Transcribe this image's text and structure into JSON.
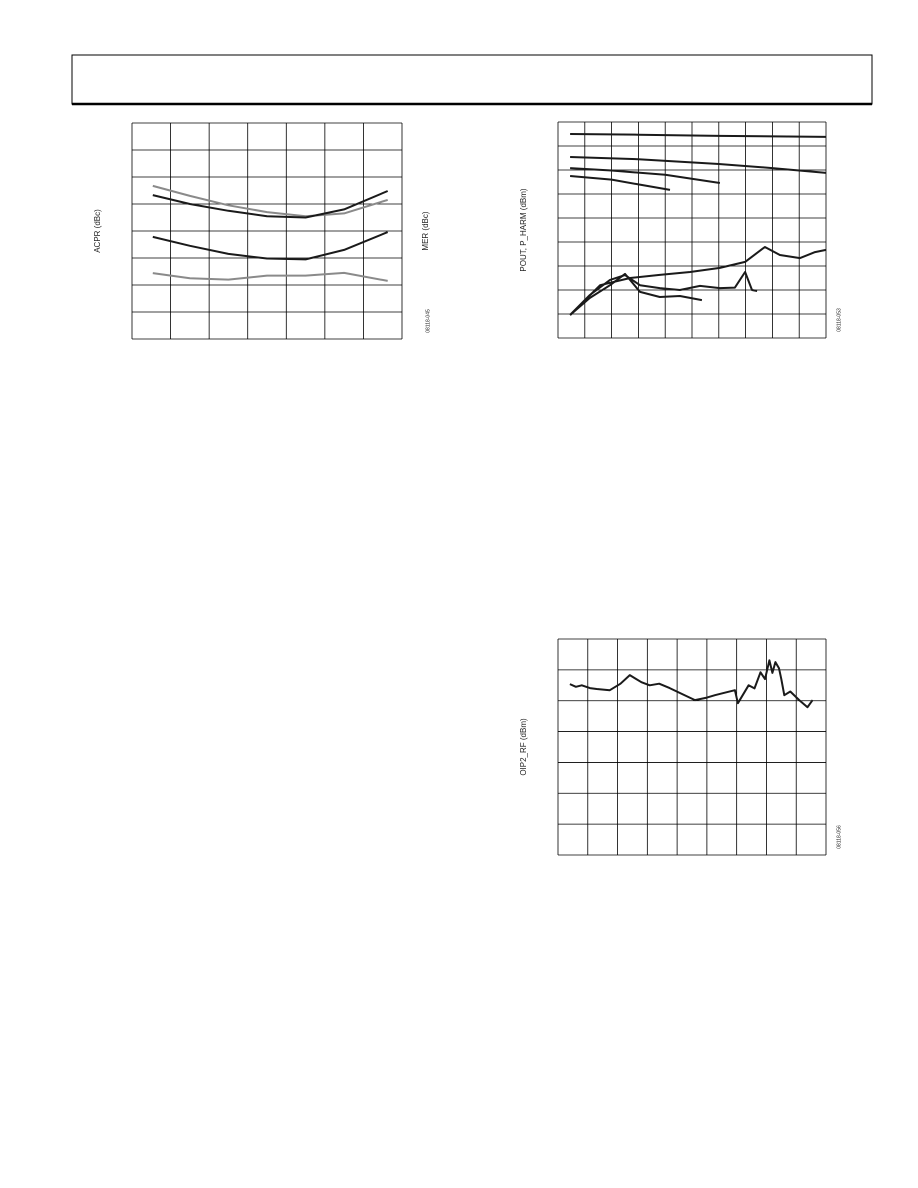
{
  "chart_data": [
    {
      "type": "line",
      "y_label": "ACPR (dBc)",
      "y2_label": "MER (dBc)",
      "figure_id": "08118-045",
      "xlim": [
        0,
        7
      ],
      "ylim": [
        0,
        8
      ],
      "xticks": [
        0,
        1,
        2,
        3,
        4,
        5,
        6,
        7
      ],
      "yticks": [
        0,
        1,
        2,
        3,
        4,
        5,
        6,
        7,
        8
      ],
      "grid": true,
      "x": [
        0.54,
        1.5,
        2.5,
        3.5,
        4.5,
        5.5,
        6.63
      ],
      "series": [
        {
          "color": "#8a8a8a",
          "values": [
            5.67,
            5.3,
            4.95,
            4.7,
            4.55,
            4.65,
            5.15
          ]
        },
        {
          "color": "#1a1a1a",
          "values": [
            5.33,
            5.0,
            4.75,
            4.55,
            4.5,
            4.8,
            5.48
          ]
        },
        {
          "color": "#1a1a1a",
          "values": [
            3.78,
            3.45,
            3.15,
            2.98,
            2.95,
            3.3,
            3.96
          ]
        },
        {
          "color": "#8a8a8a",
          "values": [
            2.44,
            2.25,
            2.2,
            2.35,
            2.35,
            2.45,
            2.15
          ]
        }
      ]
    },
    {
      "type": "line",
      "y_label": "POUT, P_HARM (dBm)",
      "figure_id": "08118-053",
      "xlim": [
        0,
        10
      ],
      "ylim": [
        0,
        9
      ],
      "xticks": [
        0,
        1,
        2,
        3,
        4,
        5,
        6,
        7,
        8,
        9,
        10
      ],
      "yticks": [
        0,
        1,
        2,
        3,
        4,
        5,
        6,
        7,
        8,
        9
      ],
      "grid": true,
      "series": [
        {
          "color": "#1a1a1a",
          "x": [
            0.45,
            3,
            6,
            10
          ],
          "values": [
            8.5,
            8.47,
            8.42,
            8.38
          ]
        },
        {
          "color": "#1a1a1a",
          "x": [
            0.45,
            3,
            6,
            8,
            10
          ],
          "values": [
            7.54,
            7.45,
            7.25,
            7.08,
            6.88
          ]
        },
        {
          "color": "#1a1a1a",
          "x": [
            0.45,
            2,
            4,
            6.04
          ],
          "values": [
            7.08,
            6.98,
            6.8,
            6.46
          ]
        },
        {
          "color": "#1a1a1a",
          "x": [
            0.45,
            2,
            3,
            4.18
          ],
          "values": [
            6.75,
            6.6,
            6.4,
            6.17
          ]
        },
        {
          "color": "#1a1a1a",
          "x": [
            0.45,
            1.01,
            1.57,
            2.69,
            3.8,
            4.93,
            6.04,
            6.98,
            7.72,
            8.28,
            9.03,
            9.59,
            10
          ],
          "values": [
            0.96,
            1.58,
            2.2,
            2.5,
            2.63,
            2.75,
            2.92,
            3.17,
            3.79,
            3.46,
            3.33,
            3.58,
            3.67
          ]
        },
        {
          "color": "#1a1a1a",
          "x": [
            0.45,
            1.19,
            1.94,
            2.5,
            3.06,
            3.8,
            4.55,
            5.3,
            6.04,
            6.6,
            6.98,
            7.24,
            7.43
          ],
          "values": [
            0.96,
            1.79,
            2.42,
            2.62,
            2.2,
            2.08,
            2.0,
            2.17,
            2.08,
            2.1,
            2.75,
            2.0,
            1.96
          ]
        },
        {
          "color": "#1a1a1a",
          "x": [
            0.45,
            1.19,
            1.94,
            2.5,
            3.06,
            3.8,
            4.55,
            5.37
          ],
          "values": [
            0.96,
            1.67,
            2.2,
            2.67,
            1.92,
            1.71,
            1.75,
            1.58
          ]
        }
      ]
    },
    {
      "type": "line",
      "y_label": "OIP2_RF (dBm)",
      "figure_id": "08118-056",
      "xlim": [
        0,
        9
      ],
      "ylim": [
        0,
        7
      ],
      "xticks": [
        0,
        1,
        2,
        3,
        4,
        5,
        6,
        7,
        8,
        9
      ],
      "yticks": [
        0,
        1,
        2,
        3,
        4,
        5,
        6,
        7
      ],
      "grid": true,
      "series": [
        {
          "color": "#1a1a1a",
          "x": [
            0.4,
            0.6,
            0.8,
            1.07,
            1.3,
            1.74,
            2.1,
            2.41,
            2.8,
            3.08,
            3.4,
            3.75,
            4.2,
            4.6,
            5.0,
            5.27,
            5.6,
            5.94,
            6.04,
            6.4,
            6.6,
            6.8,
            6.95,
            7.1,
            7.2,
            7.3,
            7.42,
            7.5,
            7.6,
            7.8,
            8.1,
            8.38,
            8.55
          ],
          "values": [
            5.54,
            5.45,
            5.5,
            5.41,
            5.38,
            5.34,
            5.55,
            5.83,
            5.6,
            5.5,
            5.55,
            5.41,
            5.2,
            5.02,
            5.1,
            5.18,
            5.26,
            5.34,
            4.92,
            5.5,
            5.4,
            5.92,
            5.7,
            6.31,
            5.9,
            6.25,
            6.05,
            5.7,
            5.18,
            5.3,
            5.02,
            4.79,
            5.02
          ]
        }
      ]
    }
  ]
}
